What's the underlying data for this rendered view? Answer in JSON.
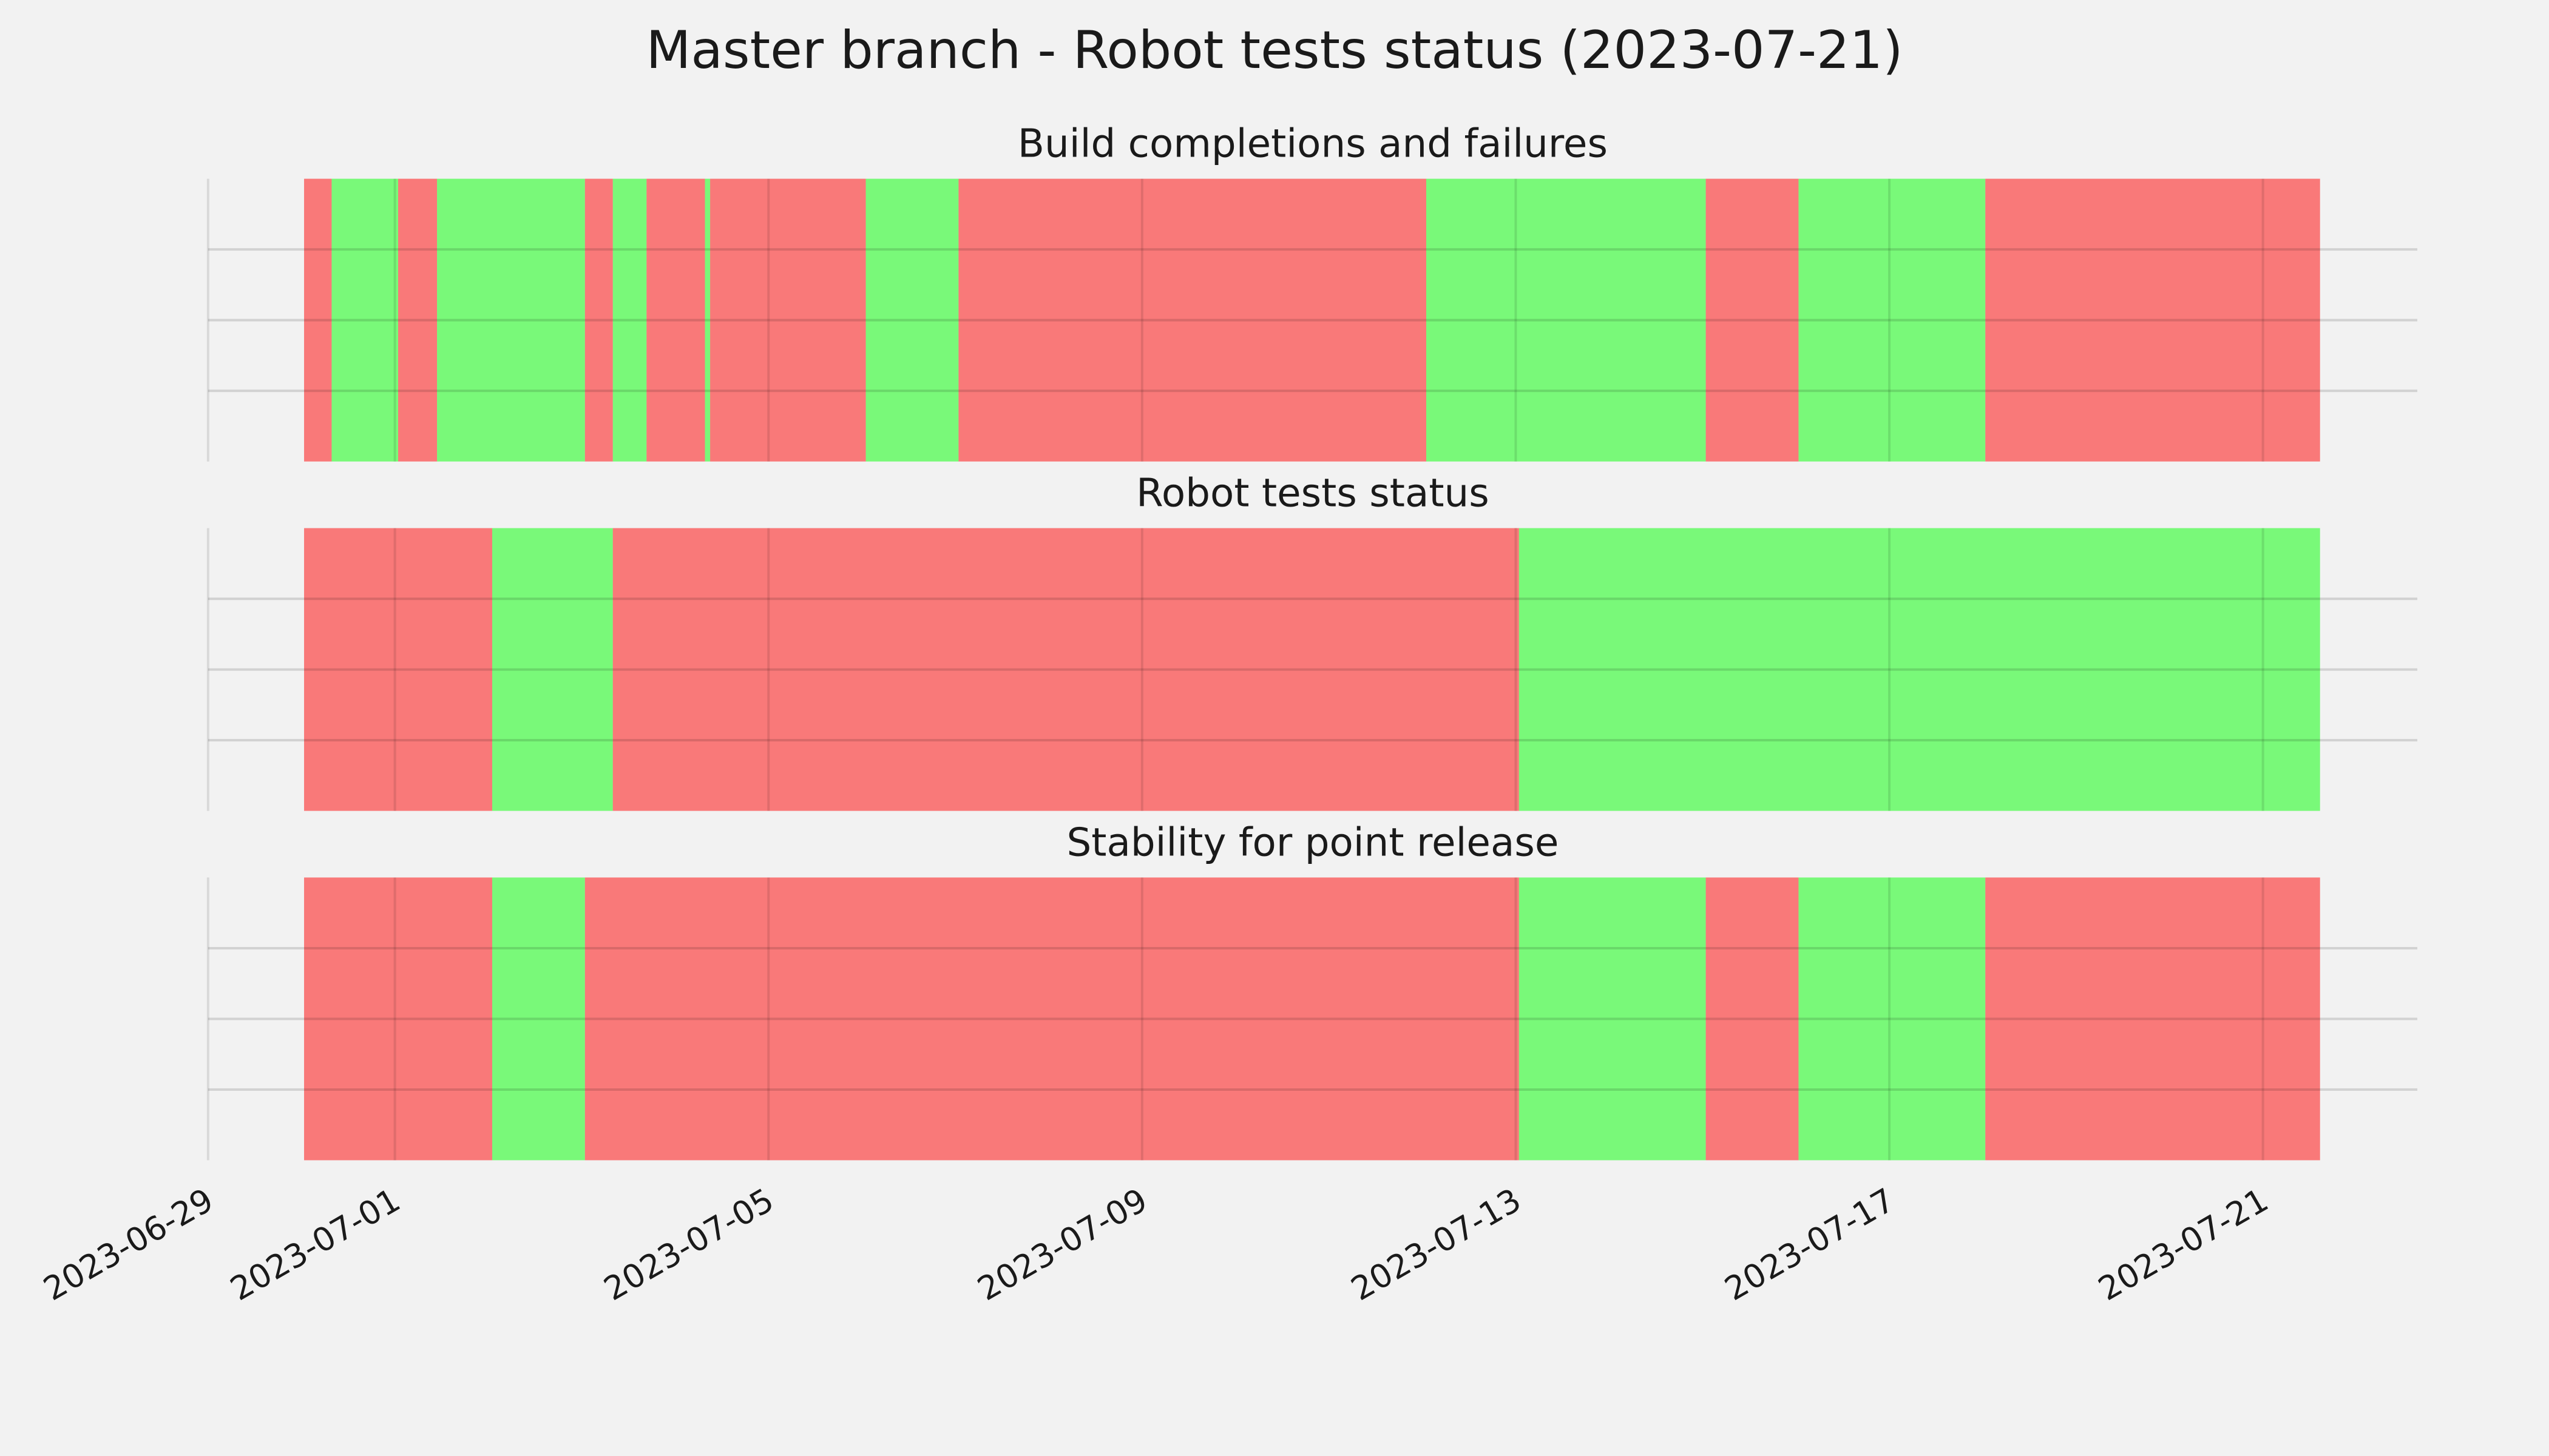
{
  "title": "Master branch - Robot tests status (2023-07-21)",
  "chart_data": [
    {
      "type": "timeline",
      "title": "Build completions and failures",
      "xlim": [
        "2023-06-29",
        "2023-07-22 15:40"
      ],
      "xticks": [
        "2023-06-29",
        "2023-07-01",
        "2023-07-05",
        "2023-07-09",
        "2023-07-13",
        "2023-07-17",
        "2023-07-21"
      ],
      "ylim": [
        0,
        1
      ],
      "yticks": [
        0.25,
        0.5,
        0.75
      ],
      "grid": true,
      "segments": [
        {
          "start": "2023-06-30 00:40",
          "end": "2023-06-30 07:45",
          "color": "#ff0000"
        },
        {
          "start": "2023-06-30 07:45",
          "end": "2023-07-01 00:50",
          "color": "#00ff00"
        },
        {
          "start": "2023-07-01 00:50",
          "end": "2023-07-01 10:50",
          "color": "#ff0000"
        },
        {
          "start": "2023-07-01 10:50",
          "end": "2023-07-03 00:50",
          "color": "#00ff00"
        },
        {
          "start": "2023-07-03 00:50",
          "end": "2023-07-03 08:00",
          "color": "#ff0000"
        },
        {
          "start": "2023-07-03 08:00",
          "end": "2023-07-03 16:40",
          "color": "#00ff00"
        },
        {
          "start": "2023-07-03 16:40",
          "end": "2023-07-04 07:40",
          "color": "#ff0000"
        },
        {
          "start": "2023-07-04 07:40",
          "end": "2023-07-04 09:00",
          "color": "#00ff00"
        },
        {
          "start": "2023-07-04 09:00",
          "end": "2023-07-06 01:00",
          "color": "#ff0000"
        },
        {
          "start": "2023-07-06 01:00",
          "end": "2023-07-07 00:50",
          "color": "#00ff00"
        },
        {
          "start": "2023-07-07 00:50",
          "end": "2023-07-12 01:00",
          "color": "#ff0000"
        },
        {
          "start": "2023-07-12 01:00",
          "end": "2023-07-15 00:50",
          "color": "#00ff00"
        },
        {
          "start": "2023-07-15 00:50",
          "end": "2023-07-16 00:40",
          "color": "#ff0000"
        },
        {
          "start": "2023-07-16 00:40",
          "end": "2023-07-18 00:40",
          "color": "#00ff00"
        },
        {
          "start": "2023-07-18 00:40",
          "end": "2023-07-21 14:40",
          "color": "#ff0000"
        }
      ]
    },
    {
      "type": "timeline",
      "title": "Robot tests status",
      "xlim": [
        "2023-06-29",
        "2023-07-22 15:40"
      ],
      "xticks": [
        "2023-06-29",
        "2023-07-01",
        "2023-07-05",
        "2023-07-09",
        "2023-07-13",
        "2023-07-17",
        "2023-07-21"
      ],
      "ylim": [
        0,
        1
      ],
      "yticks": [
        0.25,
        0.5,
        0.75
      ],
      "grid": true,
      "segments": [
        {
          "start": "2023-06-30 00:40",
          "end": "2023-07-02 01:00",
          "color": "#ff0000"
        },
        {
          "start": "2023-07-02 01:00",
          "end": "2023-07-03 08:00",
          "color": "#00ff00"
        },
        {
          "start": "2023-07-03 08:00",
          "end": "2023-07-13 00:50",
          "color": "#ff0000"
        },
        {
          "start": "2023-07-13 00:50",
          "end": "2023-07-21 14:40",
          "color": "#00ff00"
        }
      ]
    },
    {
      "type": "timeline",
      "title": "Stability for point release",
      "xlim": [
        "2023-06-29",
        "2023-07-22 15:40"
      ],
      "xticks": [
        "2023-06-29",
        "2023-07-01",
        "2023-07-05",
        "2023-07-09",
        "2023-07-13",
        "2023-07-17",
        "2023-07-21"
      ],
      "ylim": [
        0,
        1
      ],
      "yticks": [
        0.25,
        0.5,
        0.75
      ],
      "grid": true,
      "segments": [
        {
          "start": "2023-06-30 00:40",
          "end": "2023-07-02 01:00",
          "color": "#ff0000"
        },
        {
          "start": "2023-07-02 01:00",
          "end": "2023-07-03 00:50",
          "color": "#00ff00"
        },
        {
          "start": "2023-07-03 00:50",
          "end": "2023-07-13 00:50",
          "color": "#ff0000"
        },
        {
          "start": "2023-07-13 00:50",
          "end": "2023-07-15 00:50",
          "color": "#00ff00"
        },
        {
          "start": "2023-07-15 00:50",
          "end": "2023-07-16 00:40",
          "color": "#ff0000"
        },
        {
          "start": "2023-07-16 00:40",
          "end": "2023-07-18 00:40",
          "color": "#00ff00"
        },
        {
          "start": "2023-07-18 00:40",
          "end": "2023-07-21 14:40",
          "color": "#ff0000"
        }
      ]
    }
  ]
}
